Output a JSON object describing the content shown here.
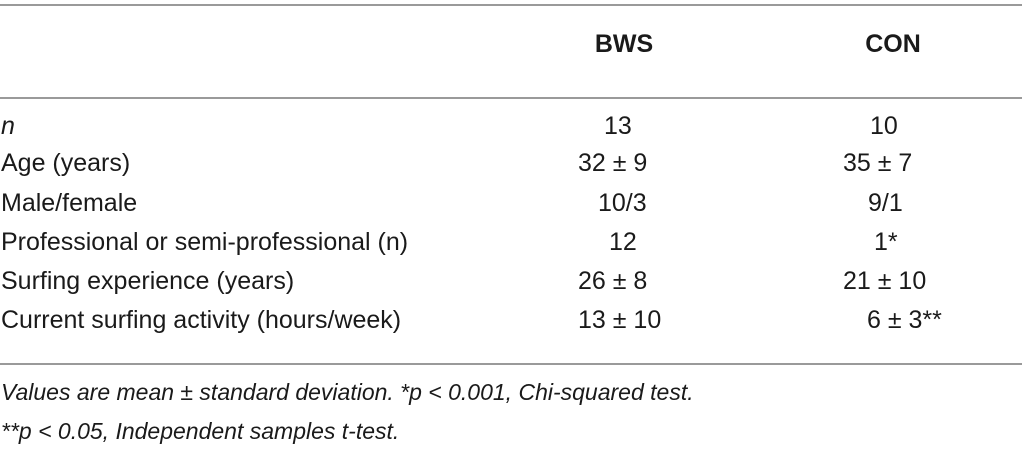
{
  "table": {
    "columns": [
      "BWS",
      "CON"
    ],
    "rows": [
      {
        "label": "n",
        "bws": "13",
        "con": "10"
      },
      {
        "label": "Age (years)",
        "bws": "32 ± 9",
        "con": "35 ± 7"
      },
      {
        "label": "Male/female",
        "bws": "10/3",
        "con": "9/1"
      },
      {
        "label": "Professional or semi-professional (n)",
        "bws": "12",
        "con": "1*"
      },
      {
        "label": "Surfing experience (years)",
        "bws": "26 ± 8",
        "con": "21 ± 10"
      },
      {
        "label": "Current surfing activity (hours/week)",
        "bws": "13 ± 10",
        "con": "6 ± 3**"
      }
    ]
  },
  "footnotes": [
    "Values are mean ± standard deviation.  *p < 0.001, Chi-squared test.",
    "**p < 0.05, Independent samples t-test."
  ]
}
